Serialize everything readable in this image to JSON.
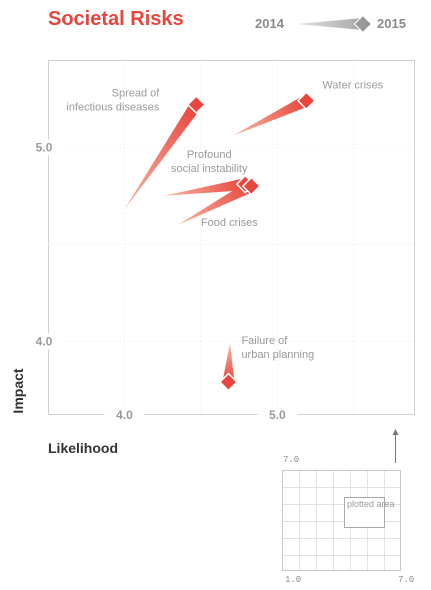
{
  "legend": {
    "from_label": "2014",
    "to_label": "2015"
  },
  "colors": {
    "accent": "#e8453c",
    "trail_start": "#f7b8a4",
    "trail_end": "#e8453c",
    "marker": "#e8453c",
    "grid": "#e8e8e8",
    "axis_text": "#9a9a9a"
  },
  "inset": {
    "y_tick": "7.0",
    "x_tick_min": "1.0",
    "x_tick_max": "7.0",
    "area_label": "plotted area"
  },
  "chart_data": {
    "type": "scatter",
    "title": "Societal Risks",
    "xlabel": "Likelihood",
    "ylabel": "Impact",
    "xlim": [
      3.5,
      5.9
    ],
    "ylim": [
      3.62,
      5.45
    ],
    "xticks": [
      4.0,
      5.0
    ],
    "yticks": [
      4.0,
      5.0
    ],
    "tick_labels_x": [
      "4.0",
      "5.0"
    ],
    "tick_labels_y": [
      "4.0",
      "5.0"
    ],
    "grid": true,
    "series": [
      {
        "name": "Spread of infectious diseases",
        "from": {
          "x": 4.0,
          "y": 4.68
        },
        "to": {
          "x": 4.47,
          "y": 5.22
        }
      },
      {
        "name": "Water crises",
        "from": {
          "x": 4.71,
          "y": 5.06
        },
        "to": {
          "x": 5.19,
          "y": 5.24
        }
      },
      {
        "name": "Profound social instability",
        "from": {
          "x": 4.26,
          "y": 4.75
        },
        "to": {
          "x": 4.79,
          "y": 4.81
        }
      },
      {
        "name": "Food crises",
        "from": {
          "x": 4.35,
          "y": 4.6
        },
        "to": {
          "x": 4.83,
          "y": 4.8
        }
      },
      {
        "name": "Failure of urban planning",
        "from": {
          "x": 4.69,
          "y": 3.99
        },
        "to": {
          "x": 4.68,
          "y": 3.79
        }
      }
    ],
    "labels": [
      {
        "series": "Spread of infectious diseases",
        "lines": [
          "Spread of",
          "infectious diseases"
        ]
      },
      {
        "series": "Water crises",
        "lines": [
          "Water crises"
        ]
      },
      {
        "series": "Profound social instability",
        "lines": [
          "Profound",
          "social instability"
        ]
      },
      {
        "series": "Food crises",
        "lines": [
          "Food crises"
        ]
      },
      {
        "series": "Failure of urban planning",
        "lines": [
          "Failure of",
          "urban planning"
        ]
      }
    ]
  }
}
